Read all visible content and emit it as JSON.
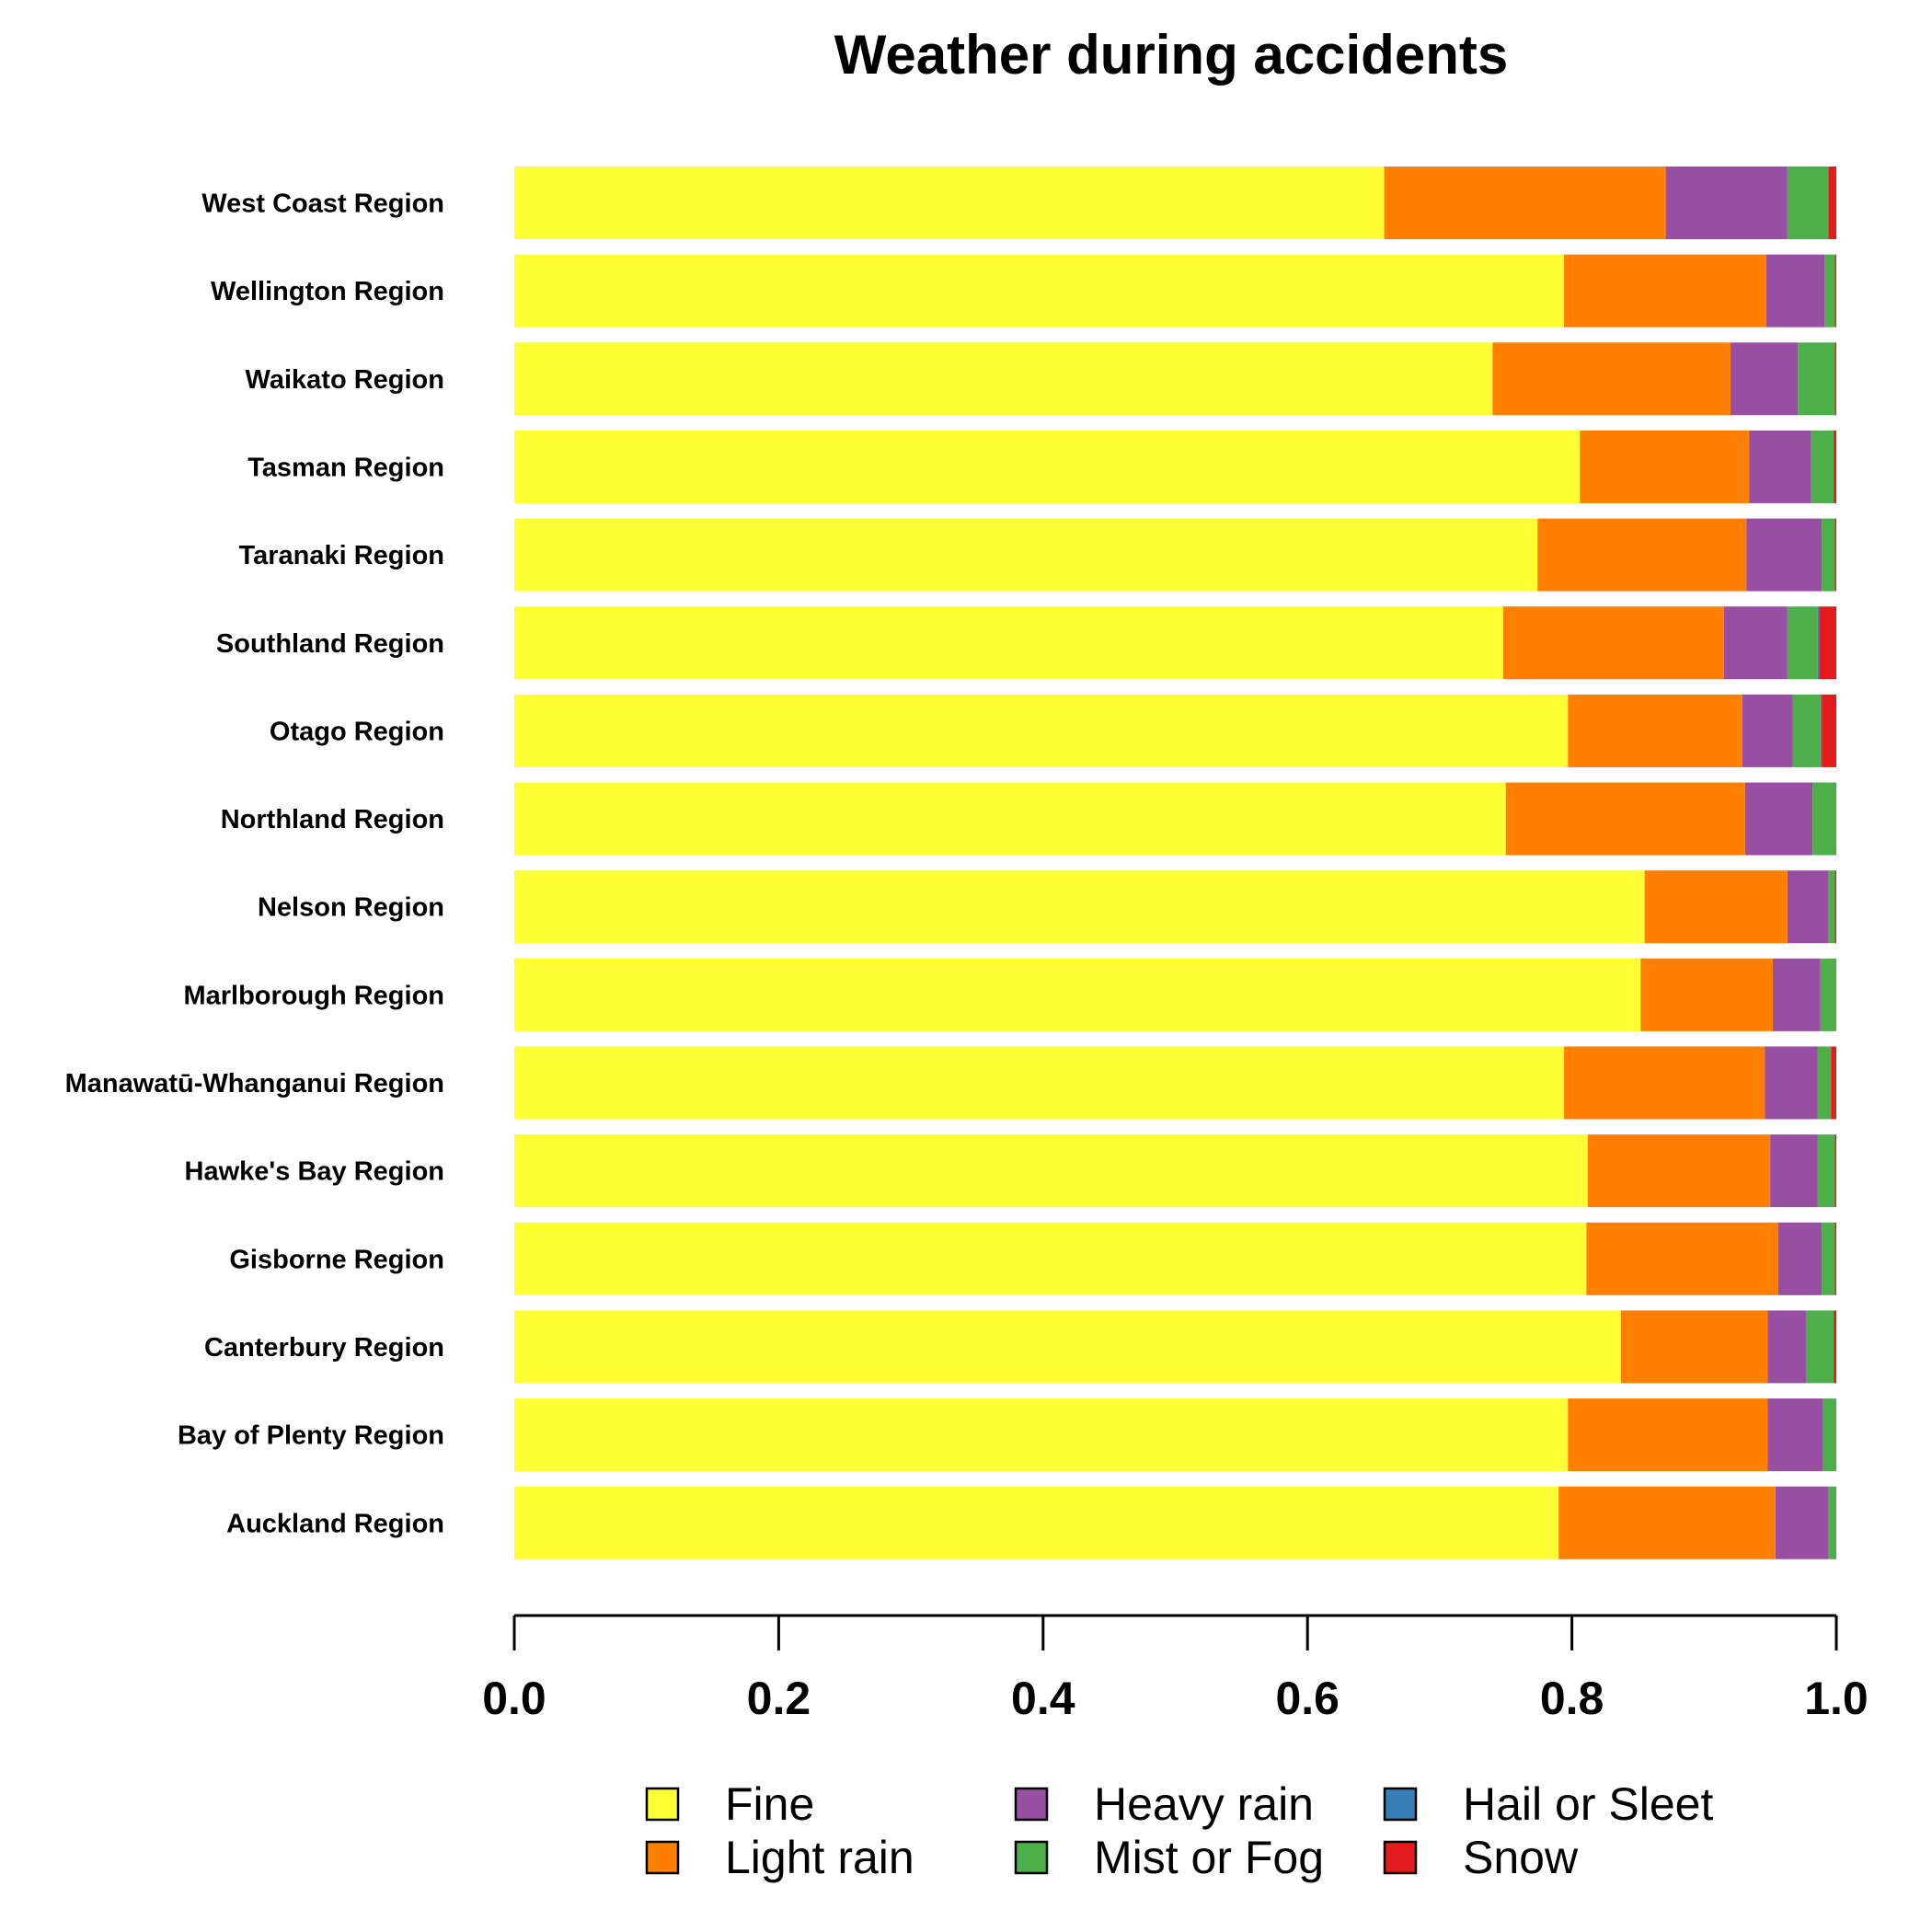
{
  "chart_data": {
    "type": "bar",
    "orientation": "horizontal",
    "stacked": true,
    "title": "Weather during accidents",
    "xlabel": "",
    "ylabel": "",
    "xlim": [
      0,
      1
    ],
    "ticks": [
      "0.0",
      "0.2",
      "0.4",
      "0.6",
      "0.8",
      "1.0"
    ],
    "grid": false,
    "legend_position": "bottom",
    "categories": [
      "West Coast Region",
      "Wellington Region",
      "Waikato Region",
      "Tasman Region",
      "Taranaki Region",
      "Southland Region",
      "Otago Region",
      "Northland Region",
      "Nelson Region",
      "Marlborough Region",
      "Manawatū-Whanganui Region",
      "Hawke's Bay Region",
      "Gisborne Region",
      "Canterbury Region",
      "Bay of Plenty Region",
      "Auckland Region"
    ],
    "series": [
      {
        "name": "Fine",
        "color": "#FFFF33",
        "values": [
          0.658,
          0.794,
          0.74,
          0.806,
          0.774,
          0.748,
          0.797,
          0.75,
          0.855,
          0.852,
          0.794,
          0.812,
          0.811,
          0.837,
          0.797,
          0.79
        ]
      },
      {
        "name": "Light rain",
        "color": "#FF7F00",
        "values": [
          0.213,
          0.153,
          0.18,
          0.128,
          0.158,
          0.167,
          0.132,
          0.181,
          0.108,
          0.1,
          0.152,
          0.138,
          0.145,
          0.111,
          0.151,
          0.164
        ]
      },
      {
        "name": "Heavy rain",
        "color": "#984EA3",
        "values": [
          0.092,
          0.044,
          0.051,
          0.047,
          0.057,
          0.048,
          0.038,
          0.051,
          0.031,
          0.036,
          0.04,
          0.036,
          0.033,
          0.029,
          0.042,
          0.04
        ]
      },
      {
        "name": "Mist or Fog",
        "color": "#4DAF4A",
        "values": [
          0.031,
          0.008,
          0.028,
          0.017,
          0.01,
          0.023,
          0.021,
          0.018,
          0.005,
          0.012,
          0.01,
          0.013,
          0.01,
          0.021,
          0.01,
          0.006
        ]
      },
      {
        "name": "Hail or Sleet",
        "color": "#377EB8",
        "values": [
          0.0,
          0.0,
          0.0,
          0.0,
          0.0,
          0.001,
          0.001,
          0.0,
          0.0,
          0.0,
          0.0,
          0.0,
          0.0,
          0.0,
          0.0,
          0.0
        ]
      },
      {
        "name": "Snow",
        "color": "#E41A1C",
        "values": [
          0.006,
          0.001,
          0.001,
          0.002,
          0.001,
          0.013,
          0.011,
          0.0,
          0.001,
          0.0,
          0.004,
          0.001,
          0.001,
          0.002,
          0.0,
          0.0
        ]
      }
    ]
  }
}
